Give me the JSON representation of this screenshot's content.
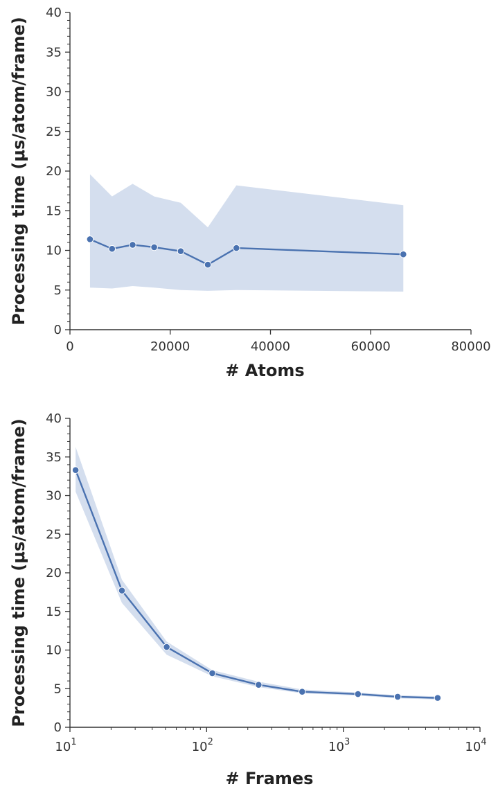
{
  "colors": {
    "line": "#4a72b0",
    "band": "#c5d3e8",
    "axis": "#333333"
  },
  "chart_data": [
    {
      "type": "line",
      "xlabel": "# Atoms",
      "ylabel": "Processing time (μs/atom/frame)",
      "xlim": [
        0,
        80000
      ],
      "ylim": [
        0,
        40
      ],
      "x_scale": "linear",
      "grid": false,
      "xticks": [
        0,
        20000,
        40000,
        60000,
        80000
      ],
      "xtick_labels": [
        "0",
        "20000",
        "40000",
        "60000",
        "80000"
      ],
      "yticks": [
        0,
        5,
        10,
        15,
        20,
        25,
        30,
        35,
        40
      ],
      "ytick_labels": [
        "0",
        "5",
        "10",
        "15",
        "20",
        "25",
        "30",
        "35",
        "40"
      ],
      "series": [
        {
          "x": [
            4000,
            8400,
            12500,
            16800,
            22100,
            27500,
            33200,
            66500
          ],
          "y": [
            11.4,
            10.2,
            10.7,
            10.4,
            9.9,
            8.2,
            10.3,
            9.5
          ],
          "lower": [
            5.3,
            5.2,
            5.5,
            5.3,
            5.0,
            4.9,
            5.0,
            4.8
          ],
          "upper": [
            19.6,
            16.8,
            18.4,
            16.8,
            16.0,
            12.9,
            18.2,
            15.7
          ]
        }
      ]
    },
    {
      "type": "line",
      "xlabel": "# Frames",
      "ylabel": "Processing time (μs/atom/frame)",
      "xlim": [
        10,
        10000
      ],
      "ylim": [
        0,
        40
      ],
      "x_scale": "log",
      "grid": false,
      "xticks": [
        10,
        100,
        1000,
        10000
      ],
      "xtick_labels": [
        {
          "base": "10",
          "exp": "1"
        },
        {
          "base": "10",
          "exp": "2"
        },
        {
          "base": "10",
          "exp": "3"
        },
        {
          "base": "10",
          "exp": "4"
        }
      ],
      "yticks": [
        0,
        5,
        10,
        15,
        20,
        25,
        30,
        35,
        40
      ],
      "ytick_labels": [
        "0",
        "5",
        "10",
        "15",
        "20",
        "25",
        "30",
        "35",
        "40"
      ],
      "series": [
        {
          "x": [
            11,
            24,
            51,
            110,
            240,
            500,
            1280,
            2500,
            4900
          ],
          "y": [
            33.3,
            17.7,
            10.4,
            7.0,
            5.5,
            4.6,
            4.3,
            3.95,
            3.8
          ],
          "lower": [
            30.5,
            16.1,
            9.4,
            6.6,
            5.2,
            4.4,
            4.1,
            3.75,
            3.6
          ],
          "upper": [
            36.3,
            19.1,
            11.1,
            7.4,
            5.9,
            4.9,
            4.5,
            4.15,
            4.0
          ]
        }
      ]
    }
  ]
}
